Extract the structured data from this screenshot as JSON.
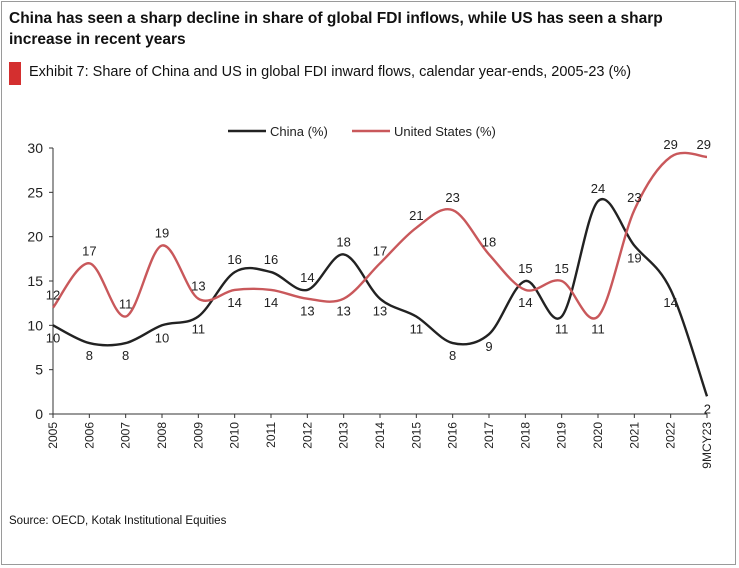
{
  "headline": "China has seen a sharp decline in share of global FDI inflows, while US has seen a sharp increase in recent years",
  "exhibit_title": "Exhibit 7: Share of China and US in global FDI inward flows, calendar year-ends, 2005-23 (%)",
  "source": "Source: OECD, Kotak Institutional Equities",
  "colors": {
    "china": "#222222",
    "us": "#c9585b",
    "marker": "#d42f2f"
  },
  "chart_data": {
    "type": "line",
    "categories": [
      "2005",
      "2006",
      "2007",
      "2008",
      "2009",
      "2010",
      "2011",
      "2012",
      "2013",
      "2014",
      "2015",
      "2016",
      "2017",
      "2018",
      "2019",
      "2020",
      "2021",
      "2022",
      "9MCY23"
    ],
    "series": [
      {
        "name": "China (%)",
        "values": [
          10,
          8,
          8,
          10,
          11,
          16,
          16,
          14,
          18,
          13,
          11,
          8,
          9,
          15,
          11,
          24,
          19,
          14,
          2
        ]
      },
      {
        "name": "United States (%)",
        "values": [
          12,
          17,
          11,
          19,
          13,
          14,
          14,
          13,
          13,
          17,
          21,
          23,
          18,
          14,
          15,
          11,
          23,
          29,
          29
        ]
      }
    ],
    "legend": [
      "China (%)",
      "United States (%)"
    ],
    "legend_position": "top-center",
    "ylim": [
      0,
      30
    ],
    "yticks": [
      "0",
      "5",
      "10",
      "15",
      "20",
      "25",
      "30"
    ],
    "grid": false,
    "xlabel": "",
    "ylabel": ""
  }
}
